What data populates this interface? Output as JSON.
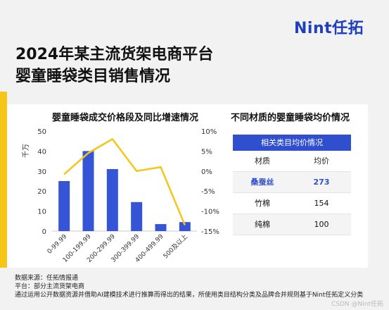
{
  "brand": {
    "logo": "Nint任拓"
  },
  "header": {
    "title_line1": "2024年某主流货架电商平台",
    "title_line2": "婴童睡袋类目销售情况"
  },
  "chart_data": {
    "type": "bar",
    "title": "婴童睡袋成交价格段及同比增速情况",
    "ylabel": "千万",
    "categories": [
      "0-99.99",
      "100-199.99",
      "200-299.99",
      "300-399.99",
      "400-499.99",
      "500及以上"
    ],
    "series": [
      {
        "type": "bar",
        "values": [
          25,
          40,
          31,
          14.5,
          3.5,
          4.5
        ],
        "axis": "left"
      },
      {
        "type": "line",
        "values": [
          -0.8,
          4.5,
          8,
          0,
          1,
          -13.5
        ],
        "axis": "right"
      }
    ],
    "ylim_left": [
      0,
      50
    ],
    "ylim_right": [
      -15,
      10
    ],
    "yticks_left": [
      "0",
      "10",
      "20",
      "30",
      "40",
      "50"
    ],
    "yticks_right": [
      "-15%",
      "-10%",
      "-5%",
      "0%",
      "5%",
      "10%"
    ],
    "colors": {
      "bar": "#3654d6",
      "line": "#f5c518"
    }
  },
  "price_table": {
    "title": "不同材质的婴童睡袋均价情况",
    "header": "相关类目均价情况",
    "columns": [
      "材质",
      "均价"
    ],
    "rows": [
      {
        "material": "桑蚕丝",
        "price": "273"
      },
      {
        "material": "竹棉",
        "price": "154"
      },
      {
        "material": "纯棉",
        "price": "100"
      }
    ]
  },
  "footer": {
    "line1": "数据来源：任拓情报通",
    "line2": "平台：部分主流货架电商",
    "line3": "通过运用公开数据资源并借助AI建模技术进行推算而得出的结果，所使用类目结构分类及品牌合并规则基于Nint任拓定义分类"
  },
  "watermark": "CSDN @Nint任拓"
}
